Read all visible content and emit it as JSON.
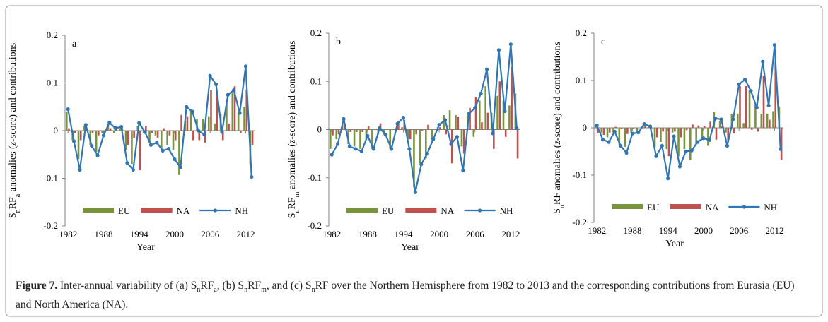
{
  "chart_data": [
    {
      "type": "bar",
      "panel": "a",
      "ylabel": [
        {
          "text": "S"
        },
        {
          "sub": "n"
        },
        {
          "text": "RF"
        },
        {
          "sub": "a"
        },
        {
          "text": " anomalies ("
        },
        {
          "italic": "z"
        },
        {
          "text": "-score) and contributions"
        }
      ],
      "xlabel": "Year",
      "x": [
        1982,
        1983,
        1984,
        1985,
        1986,
        1987,
        1988,
        1989,
        1990,
        1991,
        1992,
        1993,
        1994,
        1995,
        1996,
        1997,
        1998,
        1999,
        2000,
        2001,
        2002,
        2003,
        2004,
        2005,
        2006,
        2007,
        2008,
        2009,
        2010,
        2011,
        2012,
        2013
      ],
      "xlim": [
        1981.5,
        2013.5
      ],
      "xticks": [
        1982,
        1988,
        1994,
        2000,
        2006,
        2012
      ],
      "ylim": [
        -0.2,
        0.2
      ],
      "yticks": [
        -0.2,
        -0.1,
        0,
        0.1,
        0.2
      ],
      "legend": "bottom",
      "series": [
        {
          "name": "EU",
          "type": "bar",
          "color": "#77933c",
          "values": [
            0.04,
            -0.02,
            -0.06,
            0.01,
            -0.03,
            -0.045,
            -0.005,
            0.015,
            -0.005,
            0.005,
            -0.04,
            -0.07,
            0.01,
            -0.005,
            -0.025,
            -0.01,
            -0.04,
            -0.03,
            -0.04,
            -0.093,
            0.02,
            0.045,
            0.025,
            0.025,
            0.03,
            0.015,
            0.035,
            0.06,
            0.08,
            0.04,
            0.05,
            -0.07
          ]
        },
        {
          "name": "NA",
          "type": "bar",
          "color": "#c0504d",
          "values": [
            0.005,
            -0.005,
            -0.02,
            0.005,
            -0.005,
            -0.01,
            -0.005,
            0.005,
            0.01,
            0.005,
            -0.03,
            -0.015,
            -0.083,
            0.01,
            -0.005,
            -0.015,
            0.005,
            -0.01,
            -0.02,
            0.033,
            0.03,
            -0.02,
            -0.02,
            -0.025,
            0.085,
            0.083,
            -0.02,
            0.015,
            0.093,
            -0.005,
            0.085,
            -0.03
          ]
        },
        {
          "name": "NH",
          "type": "line",
          "color": "#2e75b6",
          "values": [
            0.045,
            -0.022,
            -0.082,
            0.012,
            -0.032,
            -0.052,
            -0.01,
            0.017,
            0.005,
            0.008,
            -0.068,
            -0.082,
            0.016,
            -0.003,
            -0.03,
            -0.025,
            -0.042,
            -0.038,
            -0.06,
            -0.077,
            0.05,
            0.04,
            0.0,
            -0.008,
            0.115,
            0.097,
            -0.003,
            0.075,
            0.085,
            0.037,
            0.135,
            -0.097
          ]
        }
      ]
    },
    {
      "type": "bar",
      "panel": "b",
      "ylabel": [
        {
          "text": "S"
        },
        {
          "sub": "n"
        },
        {
          "text": "RF"
        },
        {
          "sub": "m"
        },
        {
          "text": " anomalies ("
        },
        {
          "italic": "z"
        },
        {
          "text": "-score) and contributions"
        }
      ],
      "xlabel": "Year",
      "x": [
        1982,
        1983,
        1984,
        1985,
        1986,
        1987,
        1988,
        1989,
        1990,
        1991,
        1992,
        1993,
        1994,
        1995,
        1996,
        1997,
        1998,
        1999,
        2000,
        2001,
        2002,
        2003,
        2004,
        2005,
        2006,
        2007,
        2008,
        2009,
        2010,
        2011,
        2012,
        2013
      ],
      "xlim": [
        1981.5,
        2013.5
      ],
      "xticks": [
        1982,
        1988,
        1994,
        2000,
        2006,
        2012
      ],
      "ylim": [
        -0.2,
        0.2
      ],
      "yticks": [
        -0.2,
        -0.1,
        0,
        0.1,
        0.2
      ],
      "legend": "bottom",
      "series": [
        {
          "name": "EU",
          "type": "bar",
          "color": "#77933c",
          "values": [
            -0.04,
            -0.02,
            0.01,
            -0.03,
            -0.035,
            -0.04,
            -0.02,
            -0.04,
            -0.01,
            -0.01,
            -0.04,
            -0.005,
            0.005,
            -0.02,
            -0.12,
            -0.07,
            -0.06,
            -0.02,
            0.005,
            0.03,
            0.04,
            0.03,
            -0.035,
            0.03,
            -0.015,
            0.06,
            0.09,
            0.035,
            0.07,
            0.06,
            0.05,
            0.075
          ]
        },
        {
          "name": "NA",
          "type": "bar",
          "color": "#c0504d",
          "values": [
            -0.012,
            -0.01,
            0.012,
            -0.005,
            -0.005,
            -0.005,
            0.007,
            0.0,
            0.013,
            0.0,
            0.0,
            0.017,
            0.02,
            -0.02,
            -0.01,
            -0.002,
            0.01,
            0.0,
            0.005,
            -0.01,
            -0.07,
            0.027,
            -0.05,
            0.045,
            0.067,
            0.015,
            0.035,
            -0.04,
            0.1,
            -0.015,
            0.13,
            -0.06
          ]
        },
        {
          "name": "NH",
          "type": "line",
          "color": "#2e75b6",
          "values": [
            -0.052,
            -0.03,
            0.022,
            -0.035,
            -0.04,
            -0.045,
            -0.013,
            -0.04,
            0.003,
            -0.01,
            -0.04,
            0.012,
            0.025,
            -0.04,
            -0.13,
            -0.072,
            -0.05,
            -0.02,
            0.01,
            0.02,
            -0.03,
            -0.015,
            -0.085,
            0.033,
            0.045,
            0.075,
            0.125,
            -0.008,
            0.165,
            0.038,
            0.177,
            0.003
          ]
        }
      ]
    },
    {
      "type": "bar",
      "panel": "c",
      "ylabel": [
        {
          "text": "S"
        },
        {
          "sub": "n"
        },
        {
          "text": "RF anomalies ("
        },
        {
          "italic": "z"
        },
        {
          "text": "-score) and contributions"
        }
      ],
      "xlabel": "Year",
      "x": [
        1982,
        1983,
        1984,
        1985,
        1986,
        1987,
        1988,
        1989,
        1990,
        1991,
        1992,
        1993,
        1994,
        1995,
        1996,
        1997,
        1998,
        1999,
        2000,
        2001,
        2002,
        2003,
        2004,
        2005,
        2006,
        2007,
        2008,
        2009,
        2010,
        2011,
        2012,
        2013
      ],
      "xlim": [
        1981.5,
        2013.5
      ],
      "xticks": [
        1982,
        1988,
        1994,
        2000,
        2006,
        2012
      ],
      "ylim": [
        -0.2,
        0.2
      ],
      "yticks": [
        -0.2,
        -0.1,
        0,
        0.1,
        0.2
      ],
      "legend": "bottom",
      "series": [
        {
          "name": "EU",
          "type": "bar",
          "color": "#77933c",
          "values": [
            0.003,
            -0.01,
            -0.02,
            -0.01,
            -0.035,
            -0.04,
            -0.01,
            -0.01,
            0.005,
            0.005,
            -0.04,
            -0.03,
            -0.045,
            -0.01,
            -0.06,
            -0.045,
            -0.068,
            -0.035,
            -0.025,
            -0.038,
            0.033,
            0.015,
            -0.01,
            0.03,
            0.03,
            0.01,
            0.08,
            0.05,
            0.03,
            0.03,
            0.035,
            0.045
          ]
        },
        {
          "name": "NA",
          "type": "bar",
          "color": "#c0504d",
          "values": [
            -0.012,
            -0.015,
            -0.01,
            0.002,
            -0.003,
            -0.013,
            -0.002,
            0.0,
            0.003,
            -0.002,
            -0.02,
            -0.008,
            -0.06,
            -0.008,
            -0.02,
            -0.005,
            0.007,
            0.005,
            0.003,
            0.013,
            -0.025,
            0.003,
            -0.028,
            -0.012,
            0.088,
            0.088,
            -0.004,
            -0.008,
            0.11,
            0.017,
            0.14,
            -0.068
          ]
        },
        {
          "name": "NH",
          "type": "line",
          "color": "#2e75b6",
          "values": [
            0.005,
            -0.025,
            -0.03,
            -0.008,
            -0.038,
            -0.053,
            -0.012,
            -0.01,
            0.008,
            0.003,
            -0.06,
            -0.038,
            -0.107,
            -0.018,
            -0.082,
            -0.05,
            -0.048,
            -0.03,
            -0.022,
            -0.026,
            0.02,
            0.018,
            -0.038,
            0.018,
            0.092,
            0.102,
            0.078,
            0.043,
            0.14,
            0.047,
            0.175,
            -0.045
          ]
        }
      ]
    }
  ],
  "caption": {
    "label": "Figure 7.",
    "runs": [
      {
        "text": " Inter-annual variability of (a) S"
      },
      {
        "sub": "n"
      },
      {
        "text": "RF"
      },
      {
        "sub": "a"
      },
      {
        "text": ", (b) S"
      },
      {
        "sub": "n"
      },
      {
        "text": "RF"
      },
      {
        "sub": "m"
      },
      {
        "text": ", and (c) S"
      },
      {
        "sub": "n"
      },
      {
        "text": "RF over the Northern Hemisphere from 1982 to 2013 and the corresponding contributions from Eurasia (EU) and North America (NA)."
      }
    ]
  }
}
